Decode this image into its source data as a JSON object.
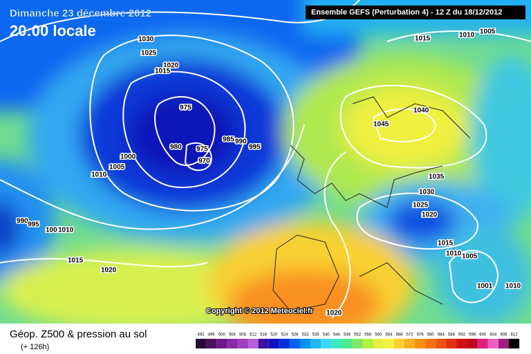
{
  "header": {
    "date": "Dimanche 23 décembre 2012",
    "time": "20:00 locale",
    "model": "Ensemble GEFS (Perturbation 4)  -  12 Z du 18/12/2012"
  },
  "copyright": "Copyright © 2012 Meteociel.fr",
  "footer": {
    "title": "Géop. Z500 & pression au sol",
    "lead": "(+ 126h)"
  },
  "isobars": [
    "1030",
    "1025",
    "1020",
    "1015",
    "975",
    "980",
    "975",
    "970",
    "985",
    "990",
    "995",
    "1000",
    "1005",
    "1010",
    "990",
    "995",
    "1000",
    "1010",
    "1015",
    "1020",
    "1040",
    "1045",
    "1035",
    "1030",
    "1025",
    "1020",
    "1015",
    "1010",
    "1005",
    "1001",
    "1010",
    "1015",
    "1010",
    "1005",
    "1020"
  ],
  "scale": [
    {
      "value": 492,
      "color": "#2a0a3a"
    },
    {
      "value": 496,
      "color": "#4a1060"
    },
    {
      "value": 500,
      "color": "#6a1a86"
    },
    {
      "value": 504,
      "color": "#8a2aa8"
    },
    {
      "value": 508,
      "color": "#a040c0"
    },
    {
      "value": 512,
      "color": "#b860d8"
    },
    {
      "value": 516,
      "color": "#3a10a0"
    },
    {
      "value": 520,
      "color": "#1010c0"
    },
    {
      "value": 524,
      "color": "#0030d8"
    },
    {
      "value": 528,
      "color": "#0060f0"
    },
    {
      "value": 532,
      "color": "#0090f8"
    },
    {
      "value": 536,
      "color": "#20b8f8"
    },
    {
      "value": 540,
      "color": "#40d8f0"
    },
    {
      "value": 544,
      "color": "#40e8c0"
    },
    {
      "value": 548,
      "color": "#50e890"
    },
    {
      "value": 552,
      "color": "#80e860"
    },
    {
      "value": 556,
      "color": "#b0f040"
    },
    {
      "value": 560,
      "color": "#e0f040"
    },
    {
      "value": 564,
      "color": "#f8f040"
    },
    {
      "value": 568,
      "color": "#f8d030"
    },
    {
      "value": 572,
      "color": "#f8b020"
    },
    {
      "value": 576,
      "color": "#f89010"
    },
    {
      "value": 580,
      "color": "#f87010"
    },
    {
      "value": 584,
      "color": "#f05010"
    },
    {
      "value": 588,
      "color": "#e03010"
    },
    {
      "value": 592,
      "color": "#d01010"
    },
    {
      "value": 596,
      "color": "#c00020"
    },
    {
      "value": 600,
      "color": "#e02080"
    },
    {
      "value": 604,
      "color": "#f060c0"
    },
    {
      "value": 608,
      "color": "#a02080"
    },
    {
      "value": 612,
      "color": "#000000"
    }
  ]
}
